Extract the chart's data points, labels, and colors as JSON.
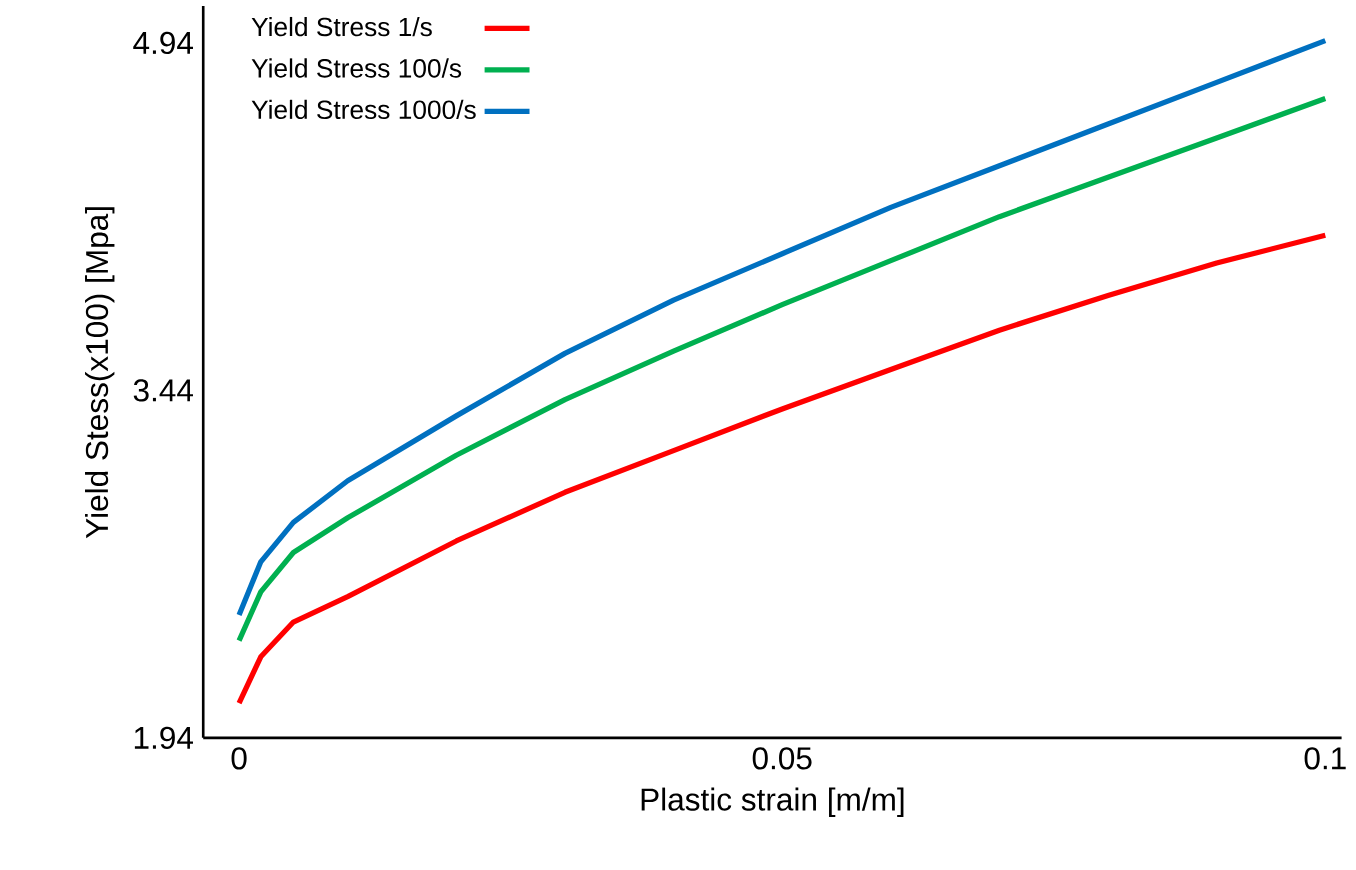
{
  "chart_data": {
    "type": "line",
    "xlabel": "Plastic strain [m/m]",
    "ylabel": "Yield Stess(x100) [Mpa]",
    "x": [
      0,
      0.002,
      0.005,
      0.01,
      0.02,
      0.03,
      0.04,
      0.05,
      0.06,
      0.07,
      0.08,
      0.09,
      0.1
    ],
    "series": [
      {
        "name": "Yield Stress 1/s",
        "color": "#ff0000",
        "values": [
          2.09,
          2.29,
          2.44,
          2.55,
          2.79,
          3.0,
          3.18,
          3.36,
          3.53,
          3.7,
          3.85,
          3.99,
          4.11
        ]
      },
      {
        "name": "Yield Stress 100/s",
        "color": "#00b050",
        "values": [
          2.36,
          2.57,
          2.74,
          2.89,
          3.16,
          3.4,
          3.61,
          3.81,
          4.0,
          4.19,
          4.36,
          4.53,
          4.7
        ]
      },
      {
        "name": "Yield Stress 1000/s",
        "color": "#0070c0",
        "values": [
          2.47,
          2.7,
          2.87,
          3.05,
          3.33,
          3.6,
          3.83,
          4.03,
          4.23,
          4.41,
          4.59,
          4.77,
          4.95
        ]
      }
    ],
    "xlim": [
      -0.0033,
      0.1015
    ],
    "ylim": [
      1.94,
      5.1
    ],
    "xticks": [
      0,
      0.05,
      0.1
    ],
    "yticks": [
      1.94,
      3.44,
      4.94
    ],
    "grid": false,
    "legend": "top left",
    "marker": "none",
    "line_style": "solid"
  }
}
